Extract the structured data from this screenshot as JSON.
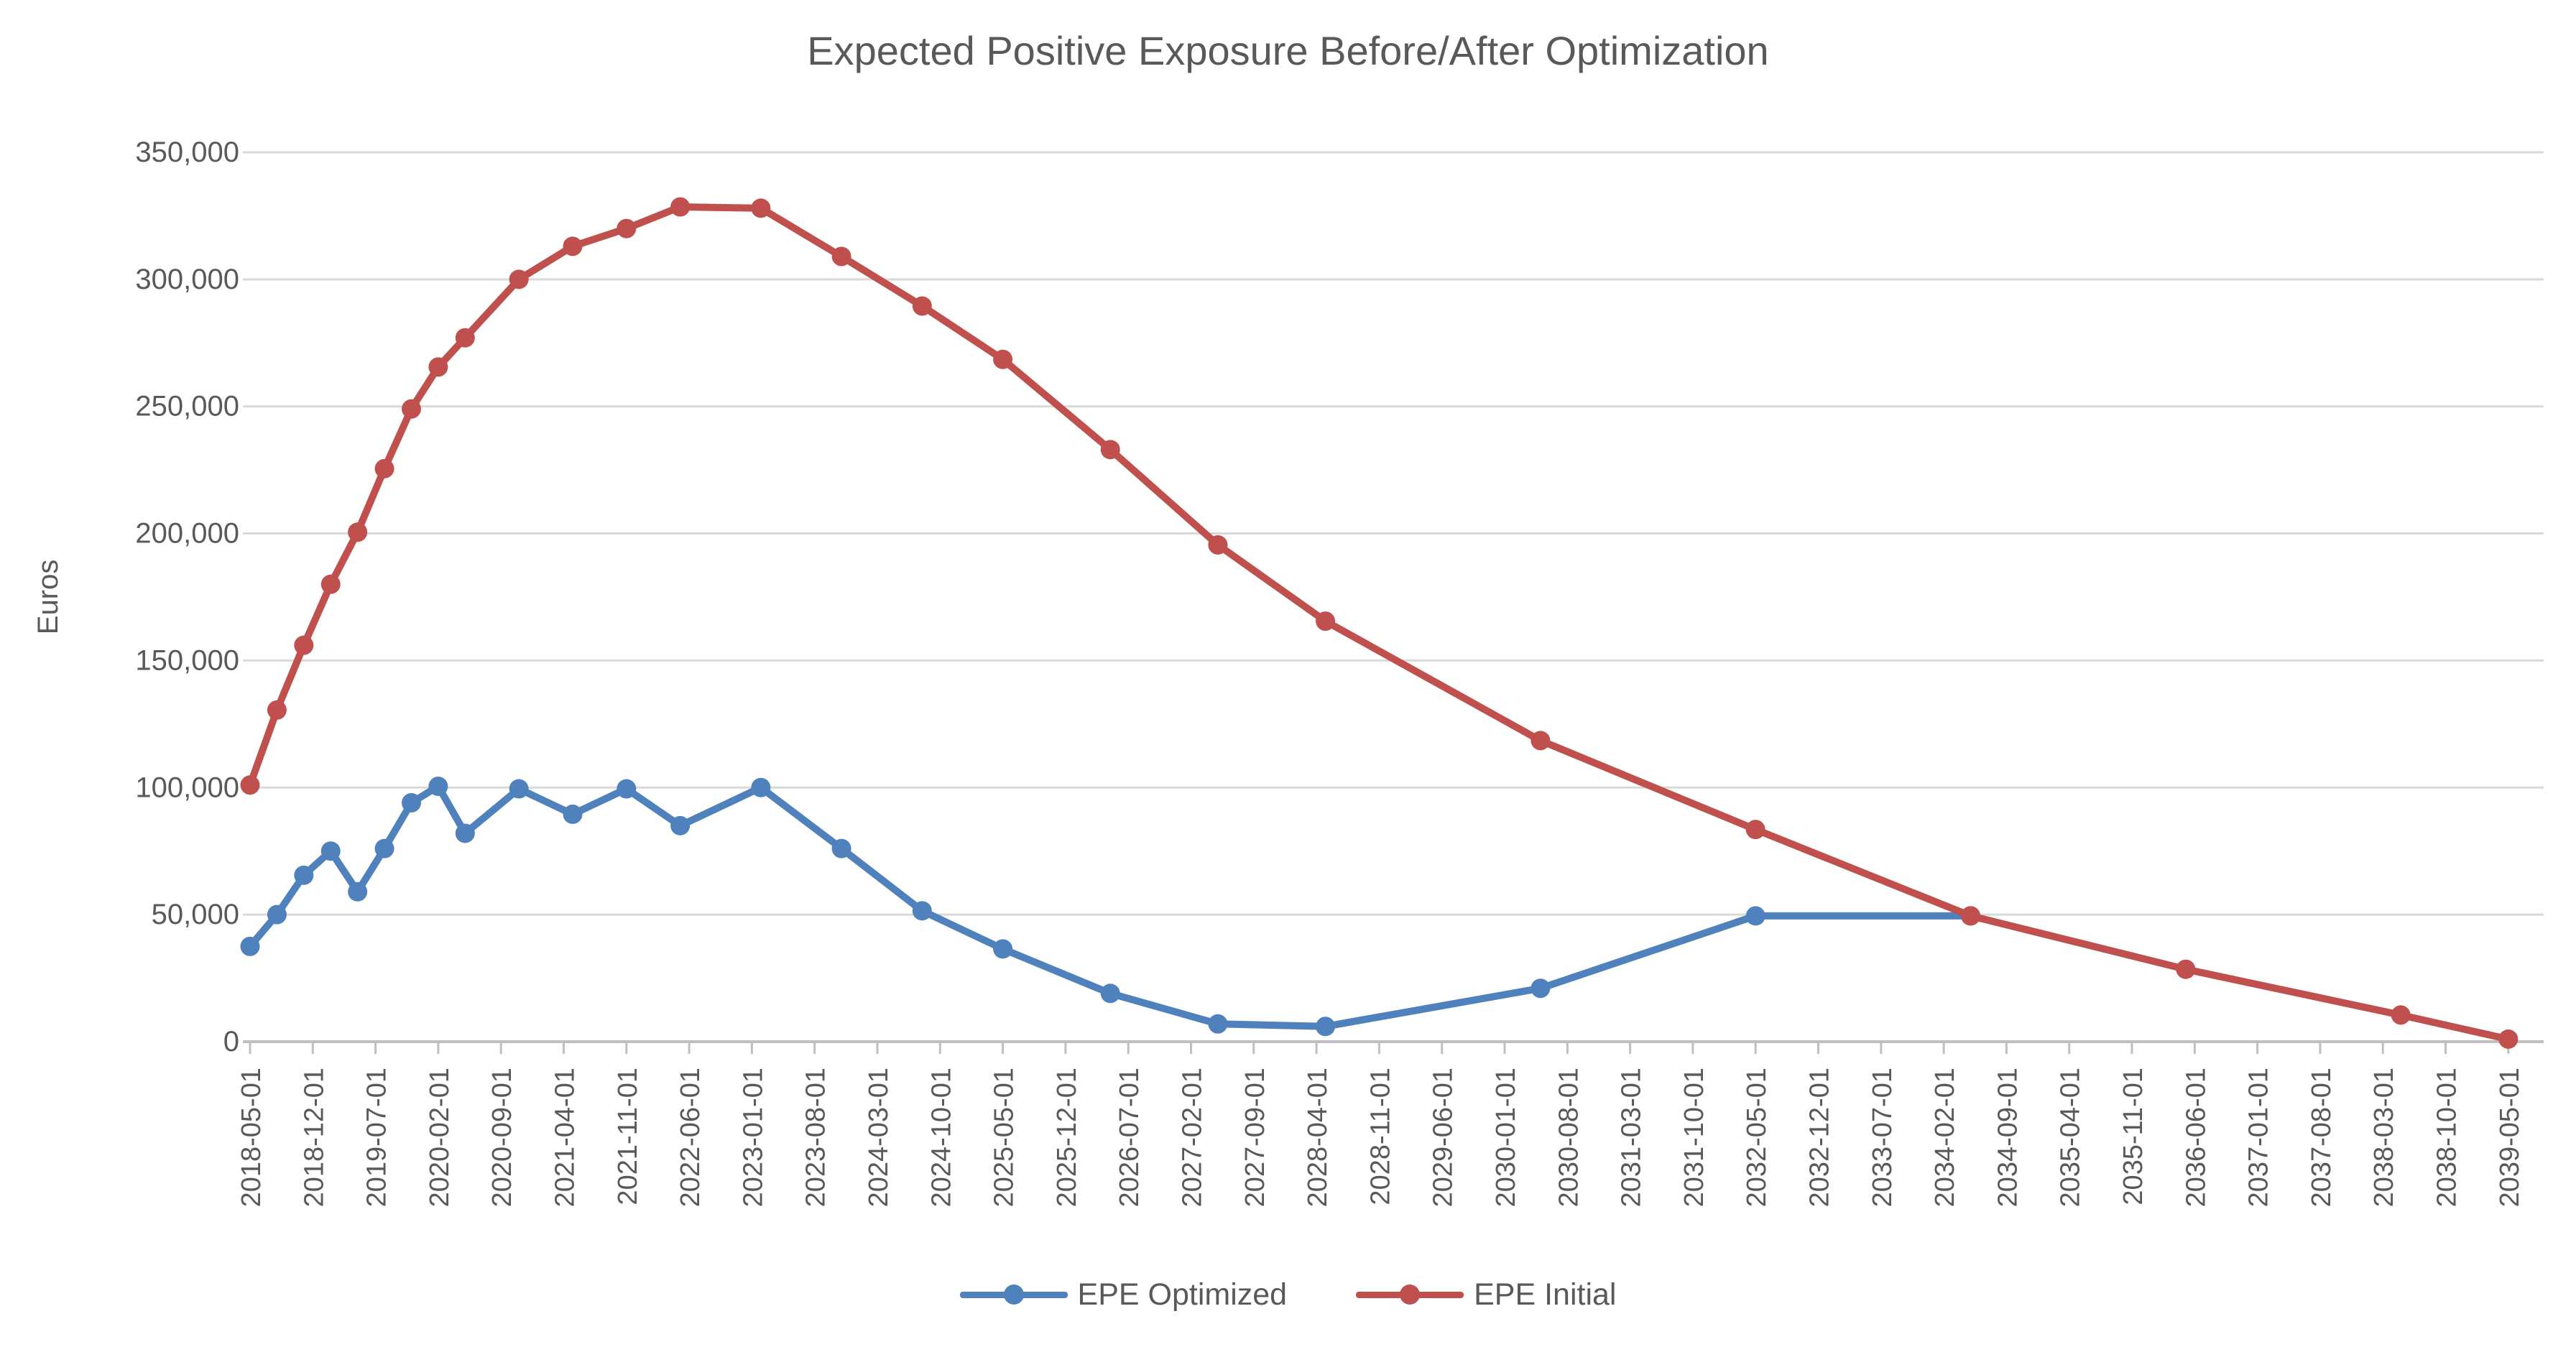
{
  "chart": {
    "title": "Expected Positive Exposure Before/After Optimization",
    "y_axis_title": "Euros",
    "y_tick_labels": [
      "0",
      "50,000",
      "100,000",
      "150,000",
      "200,000",
      "250,000",
      "300,000",
      "350,000"
    ],
    "legend": {
      "items": [
        {
          "label": "EPE Optimized",
          "color": "#4F81BD"
        },
        {
          "label": "EPE Initial",
          "color": "#C0504D"
        }
      ]
    }
  },
  "chart_data": {
    "type": "line",
    "title": "Expected Positive Exposure Before/After Optimization",
    "xlabel": "",
    "ylabel": "Euros",
    "ylim": [
      0,
      350000
    ],
    "y_ticks": [
      0,
      50000,
      100000,
      150000,
      200000,
      250000,
      300000,
      350000
    ],
    "grid": "horizontal",
    "legend_position": "bottom",
    "x_unit": "months since 2018-05-01",
    "x_tick_interval_months": 7,
    "x_tick_labels": [
      "2018-05-01",
      "2018-12-01",
      "2019-07-01",
      "2020-02-01",
      "2020-09-01",
      "2021-04-01",
      "2021-11-01",
      "2022-06-01",
      "2023-01-01",
      "2023-08-01",
      "2024-03-01",
      "2024-10-01",
      "2025-05-01",
      "2025-12-01",
      "2026-07-01",
      "2027-02-01",
      "2027-09-01",
      "2028-04-01",
      "2028-11-01",
      "2029-06-01",
      "2030-01-01",
      "2030-08-01",
      "2031-03-01",
      "2031-10-01",
      "2032-05-01",
      "2032-12-01",
      "2033-07-01",
      "2034-02-01",
      "2034-09-01",
      "2035-04-01",
      "2035-11-01",
      "2036-06-01",
      "2037-01-01",
      "2037-08-01",
      "2038-03-01",
      "2038-10-01",
      "2039-05-01"
    ],
    "series": [
      {
        "name": "EPE Optimized",
        "color": "#4F81BD",
        "points": [
          {
            "m": 0,
            "date": "2018-05-01",
            "value": 37500
          },
          {
            "m": 3,
            "date": "2018-08-01",
            "value": 50000
          },
          {
            "m": 6,
            "date": "2018-11-01",
            "value": 65500
          },
          {
            "m": 9,
            "date": "2019-02-01",
            "value": 75000
          },
          {
            "m": 12,
            "date": "2019-05-01",
            "value": 59000
          },
          {
            "m": 15,
            "date": "2019-08-01",
            "value": 76000
          },
          {
            "m": 18,
            "date": "2019-11-01",
            "value": 94000
          },
          {
            "m": 21,
            "date": "2020-02-01",
            "value": 100500
          },
          {
            "m": 24,
            "date": "2020-05-01",
            "value": 82000
          },
          {
            "m": 30,
            "date": "2020-11-01",
            "value": 99500
          },
          {
            "m": 36,
            "date": "2021-05-01",
            "value": 89500
          },
          {
            "m": 42,
            "date": "2021-11-01",
            "value": 99500
          },
          {
            "m": 48,
            "date": "2022-05-01",
            "value": 85000
          },
          {
            "m": 57,
            "date": "2023-02-01",
            "value": 100000
          },
          {
            "m": 66,
            "date": "2023-11-01",
            "value": 76000
          },
          {
            "m": 75,
            "date": "2024-08-01",
            "value": 51500
          },
          {
            "m": 84,
            "date": "2025-05-01",
            "value": 36500
          },
          {
            "m": 96,
            "date": "2026-05-01",
            "value": 19000
          },
          {
            "m": 108,
            "date": "2027-05-01",
            "value": 7000
          },
          {
            "m": 120,
            "date": "2028-05-01",
            "value": 6000
          },
          {
            "m": 144,
            "date": "2030-05-01",
            "value": 21000
          },
          {
            "m": 168,
            "date": "2032-05-01",
            "value": 49500
          },
          {
            "m": 192,
            "date": "2034-05-01",
            "value": 49500
          }
        ]
      },
      {
        "name": "EPE Initial",
        "color": "#C0504D",
        "points": [
          {
            "m": 0,
            "date": "2018-05-01",
            "value": 101000
          },
          {
            "m": 3,
            "date": "2018-08-01",
            "value": 130500
          },
          {
            "m": 6,
            "date": "2018-11-01",
            "value": 156000
          },
          {
            "m": 9,
            "date": "2019-02-01",
            "value": 180000
          },
          {
            "m": 12,
            "date": "2019-05-01",
            "value": 200500
          },
          {
            "m": 15,
            "date": "2019-08-01",
            "value": 225500
          },
          {
            "m": 18,
            "date": "2019-11-01",
            "value": 249000
          },
          {
            "m": 21,
            "date": "2020-02-01",
            "value": 265500
          },
          {
            "m": 24,
            "date": "2020-05-01",
            "value": 277000
          },
          {
            "m": 30,
            "date": "2020-11-01",
            "value": 300000
          },
          {
            "m": 36,
            "date": "2021-05-01",
            "value": 313000
          },
          {
            "m": 42,
            "date": "2021-11-01",
            "value": 320000
          },
          {
            "m": 48,
            "date": "2022-05-01",
            "value": 328500
          },
          {
            "m": 57,
            "date": "2023-02-01",
            "value": 328000
          },
          {
            "m": 66,
            "date": "2023-11-01",
            "value": 309000
          },
          {
            "m": 75,
            "date": "2024-08-01",
            "value": 289500
          },
          {
            "m": 84,
            "date": "2025-05-01",
            "value": 268500
          },
          {
            "m": 96,
            "date": "2026-05-01",
            "value": 233000
          },
          {
            "m": 108,
            "date": "2027-05-01",
            "value": 195500
          },
          {
            "m": 120,
            "date": "2028-05-01",
            "value": 165500
          },
          {
            "m": 144,
            "date": "2030-05-01",
            "value": 118500
          },
          {
            "m": 168,
            "date": "2032-05-01",
            "value": 83500
          },
          {
            "m": 192,
            "date": "2034-05-01",
            "value": 49500
          },
          {
            "m": 216,
            "date": "2036-05-01",
            "value": 28500
          },
          {
            "m": 240,
            "date": "2038-05-01",
            "value": 10500
          },
          {
            "m": 252,
            "date": "2039-05-01",
            "value": 1000
          }
        ]
      }
    ]
  }
}
